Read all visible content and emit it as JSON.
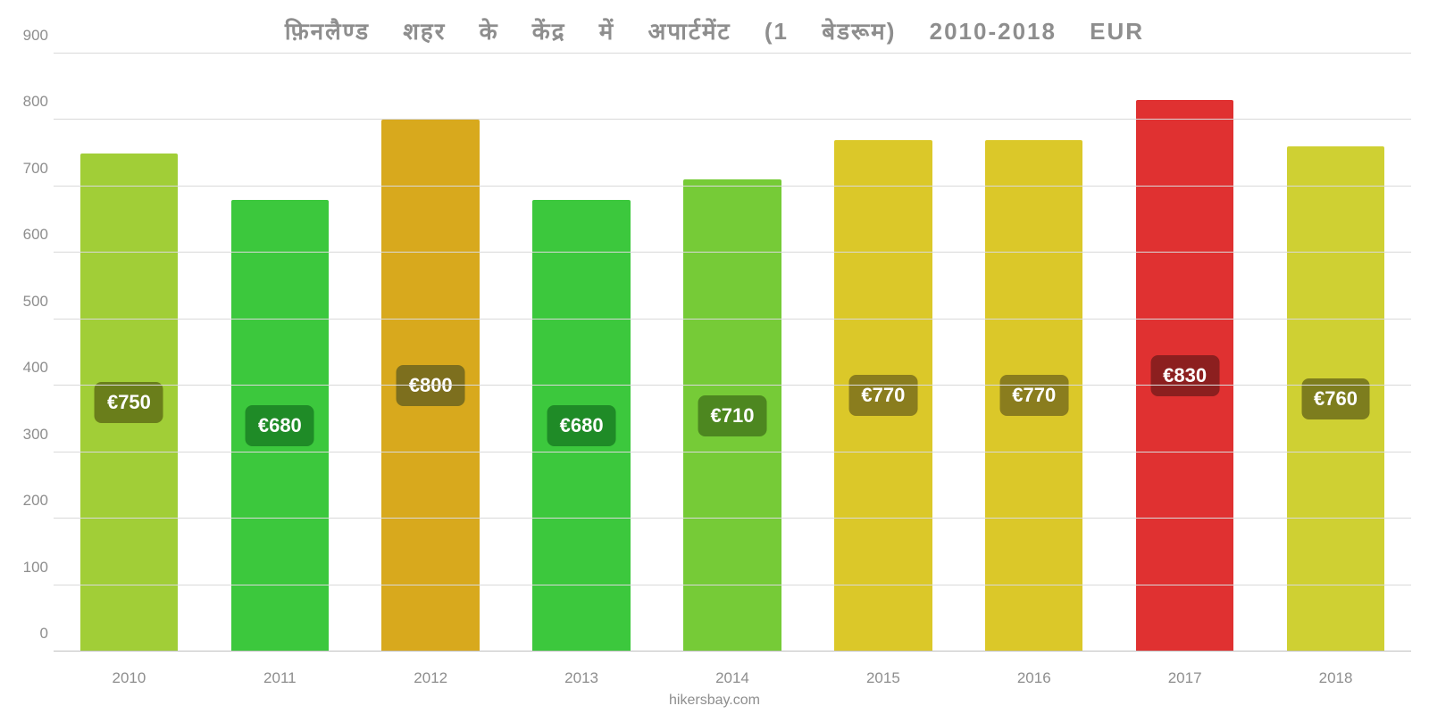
{
  "chart": {
    "type": "bar",
    "title": "फ़िनलैण्ड शहर के केंद्र में अपार्टमेंट (1 बेडरूम) 2010-2018 EUR",
    "title_color": "#8e8e8e",
    "title_fontsize": 26,
    "background_color": "#ffffff",
    "grid_color": "#d9d9d9",
    "baseline_color": "#bfbfbf",
    "y": {
      "min": 0,
      "max": 900,
      "step": 100,
      "label_color": "#8e8e8e",
      "label_fontsize": 17
    },
    "x_label_color": "#8e8e8e",
    "x_label_fontsize": 17,
    "bar_width_pct": 7.2,
    "slot_width_pct": 11.111,
    "pill_fontsize": 22,
    "pill_text_color": "#ffffff",
    "bars": [
      {
        "x": "2010",
        "value": 750,
        "label": "€750",
        "color": "#a1ce37",
        "pill_bg": "#6a7e1b"
      },
      {
        "x": "2011",
        "value": 680,
        "label": "€680",
        "color": "#3cc83d",
        "pill_bg": "#1f8b27"
      },
      {
        "x": "2012",
        "value": 800,
        "label": "€800",
        "color": "#d8a91d",
        "pill_bg": "#7d6f1e"
      },
      {
        "x": "2013",
        "value": 680,
        "label": "€680",
        "color": "#3cc83d",
        "pill_bg": "#1f8b27"
      },
      {
        "x": "2014",
        "value": 710,
        "label": "€710",
        "color": "#76cb37",
        "pill_bg": "#4d8720"
      },
      {
        "x": "2015",
        "value": 770,
        "label": "€770",
        "color": "#dbc829",
        "pill_bg": "#8a7d1e"
      },
      {
        "x": "2016",
        "value": 770,
        "label": "€770",
        "color": "#dbc829",
        "pill_bg": "#8a7d1e"
      },
      {
        "x": "2017",
        "value": 830,
        "label": "€830",
        "color": "#e03131",
        "pill_bg": "#8c1f1f"
      },
      {
        "x": "2018",
        "value": 760,
        "label": "€760",
        "color": "#cfd033",
        "pill_bg": "#7d7d1e"
      }
    ],
    "attribution": "hikersbay.com",
    "attribution_color": "#8e8e8e",
    "attribution_fontsize": 16
  }
}
